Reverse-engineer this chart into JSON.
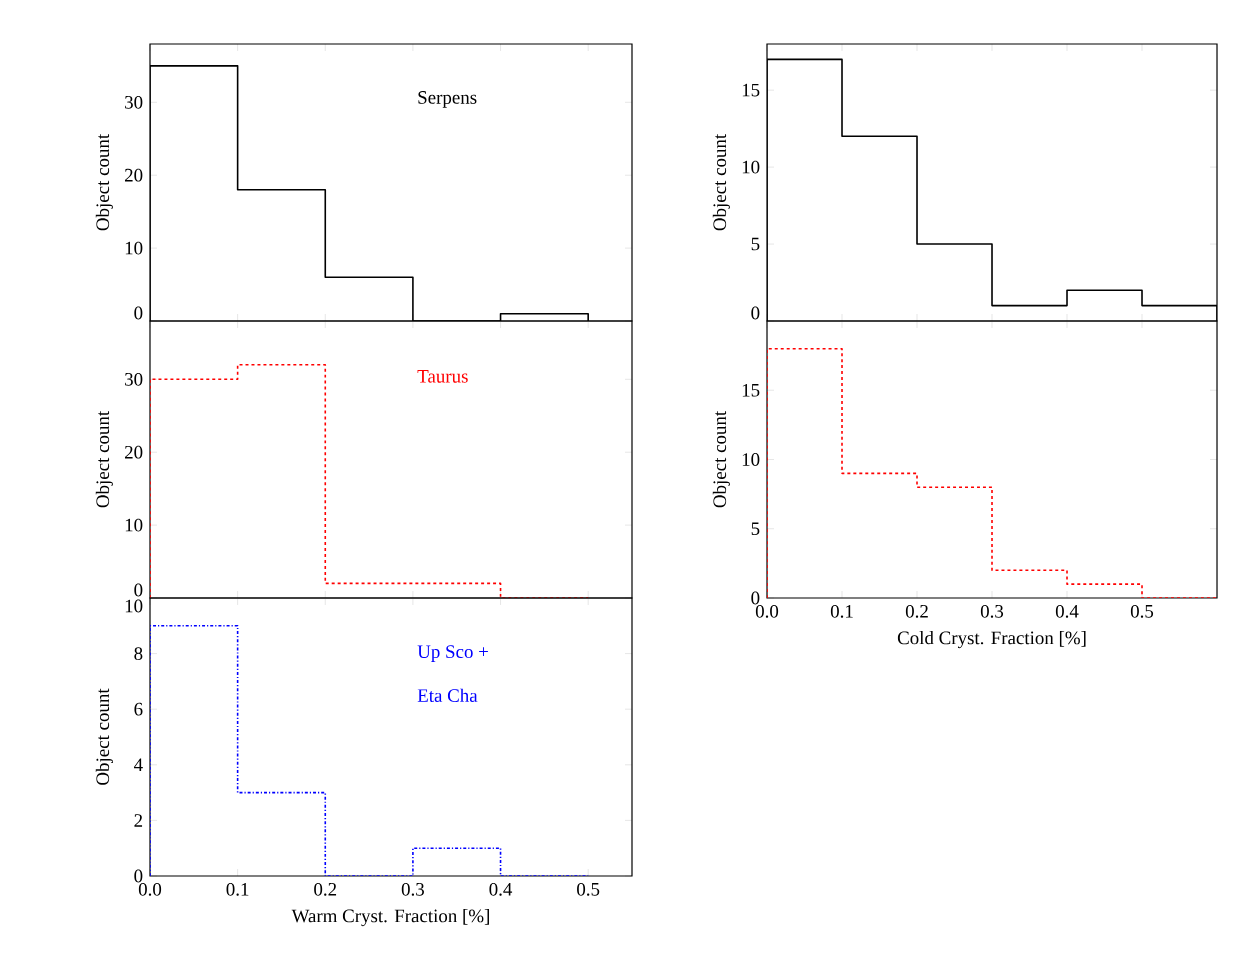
{
  "chart_data": [
    {
      "type": "histogram",
      "bins": [
        0,
        0.1,
        0.2,
        0.3,
        0.4,
        0.5
      ],
      "values": [
        35,
        18,
        6,
        0,
        1
      ],
      "color": "#000000",
      "line_style": "solid",
      "ylabel": "Object count",
      "annotations": [
        "Serpens"
      ],
      "xlim": [
        0,
        0.55
      ],
      "ylim": [
        0,
        38
      ],
      "xticks": [
        0,
        0.1,
        0.2,
        0.3,
        0.4,
        0.5
      ],
      "yticks": [
        0,
        10,
        20,
        30
      ],
      "tick_labels": "y"
    },
    {
      "type": "histogram",
      "bins": [
        0,
        0.1,
        0.2,
        0.3,
        0.4,
        0.5
      ],
      "values": [
        30,
        32,
        2,
        2,
        0
      ],
      "color": "#ff0000",
      "line_style": "dashed",
      "ylabel": "Object count",
      "annotations": [
        "Taurus"
      ],
      "xlim": [
        0,
        0.55
      ],
      "ylim": [
        0,
        38
      ],
      "xticks": [
        0,
        0.1,
        0.2,
        0.3,
        0.4,
        0.5
      ],
      "yticks": [
        0,
        10,
        20,
        30
      ],
      "tick_labels": "y"
    },
    {
      "type": "histogram",
      "bins": [
        0,
        0.1,
        0.2,
        0.3,
        0.4,
        0.5
      ],
      "values": [
        9,
        3,
        0,
        1,
        0
      ],
      "color": "#0000ff",
      "line_style": "dashdot",
      "xlabel": "Warm Cryst. Fraction [%]",
      "ylabel": "Object count",
      "annotations": [
        "Up Sco +",
        "Eta Cha"
      ],
      "xlim": [
        0,
        0.55
      ],
      "ylim": [
        0,
        10
      ],
      "xticks": [
        {
          "value": 0,
          "label": "0.0"
        },
        0.1,
        0.2,
        0.3,
        0.4,
        0.5
      ],
      "yticks": [
        0,
        2,
        4,
        6,
        8,
        10
      ]
    },
    {
      "type": "histogram",
      "bins": [
        0,
        0.1,
        0.2,
        0.3,
        0.4,
        0.5,
        0.6
      ],
      "values": [
        17,
        12,
        5,
        1,
        2,
        1
      ],
      "color": "#000000",
      "line_style": "solid",
      "ylabel": "Object count",
      "xlim": [
        0,
        0.6
      ],
      "ylim": [
        0,
        18
      ],
      "xticks": [
        0,
        0.1,
        0.2,
        0.3,
        0.4,
        0.5
      ],
      "yticks": [
        0,
        5,
        10,
        15
      ],
      "tick_labels": "y"
    },
    {
      "type": "histogram",
      "bins": [
        0,
        0.1,
        0.2,
        0.3,
        0.4,
        0.5,
        0.6
      ],
      "values": [
        18,
        9,
        8,
        2,
        1,
        0
      ],
      "color": "#ff0000",
      "line_style": "dashed",
      "xlabel": "Cold Cryst. Fraction [%]",
      "ylabel": "Object count",
      "xlim": [
        0,
        0.6
      ],
      "ylim": [
        0,
        20
      ],
      "xticks": [
        {
          "value": 0,
          "label": "0.0"
        },
        0.1,
        0.2,
        0.3,
        0.4,
        0.5
      ],
      "yticks": [
        0,
        5,
        10,
        15
      ]
    }
  ]
}
